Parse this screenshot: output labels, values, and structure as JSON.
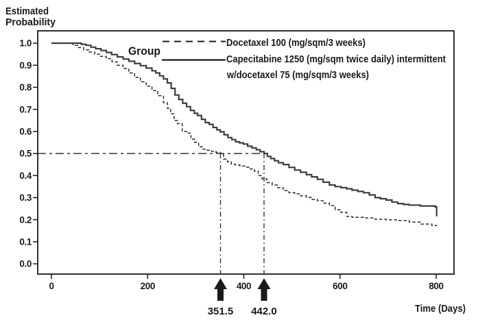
{
  "figure": {
    "ylabel_line1": "Estimated",
    "ylabel_line2": "Probability",
    "xlabel": "Time (Days)"
  },
  "legend": {
    "title": "Group",
    "items": [
      {
        "style": "dashed",
        "label": "Docetaxel 100 (mg/sqm/3 weeks)"
      },
      {
        "style": "solid",
        "label_line1": "Capecitabine 1250 (mg/sqm twice daily) intermittent",
        "label_line2": "w/docetaxel 75 (mg/sqm/3 weeks)"
      }
    ]
  },
  "colors": {
    "axis": "#1a1a1a",
    "text": "#1a1a1a",
    "solid_curve": "#3d3d3d",
    "dashed_curve": "#2b2b2b",
    "reference": "#333333",
    "background": "#ffffff"
  },
  "chart_data": {
    "type": "line",
    "subtype": "kaplan-meier-step",
    "title": "",
    "xlabel": "Time (Days)",
    "ylabel": "Estimated Probability",
    "xlim": [
      0,
      837
    ],
    "ylim": [
      0.0,
      1.0
    ],
    "x_ticks": [
      0,
      200,
      400,
      600,
      800
    ],
    "y_ticks": [
      0.0,
      0.1,
      0.2,
      0.3,
      0.4,
      0.5,
      0.6,
      0.7,
      0.8,
      0.9,
      1.0
    ],
    "grid": false,
    "legend_position": "top-right-inside",
    "series": [
      {
        "name": "Docetaxel 100 (mg/sqm/3 weeks)",
        "line_style": "dashed",
        "points": [
          [
            0,
            1.0
          ],
          [
            38,
            1.0
          ],
          [
            45,
            0.99
          ],
          [
            55,
            0.98
          ],
          [
            67,
            0.97
          ],
          [
            78,
            0.96
          ],
          [
            90,
            0.95
          ],
          [
            102,
            0.94
          ],
          [
            114,
            0.93
          ],
          [
            126,
            0.915
          ],
          [
            137,
            0.9
          ],
          [
            149,
            0.885
          ],
          [
            161,
            0.865
          ],
          [
            173,
            0.845
          ],
          [
            185,
            0.825
          ],
          [
            197,
            0.805
          ],
          [
            209,
            0.785
          ],
          [
            221,
            0.762
          ],
          [
            233,
            0.73
          ],
          [
            241,
            0.705
          ],
          [
            248,
            0.68
          ],
          [
            255,
            0.65
          ],
          [
            262,
            0.635
          ],
          [
            272,
            0.6
          ],
          [
            281,
            0.592
          ],
          [
            290,
            0.565
          ],
          [
            298,
            0.55
          ],
          [
            306,
            0.53
          ],
          [
            315,
            0.52
          ],
          [
            324,
            0.515
          ],
          [
            333,
            0.51
          ],
          [
            342,
            0.505
          ],
          [
            351.5,
            0.5
          ],
          [
            358,
            0.475
          ],
          [
            366,
            0.462
          ],
          [
            374,
            0.452
          ],
          [
            382,
            0.448
          ],
          [
            392,
            0.443
          ],
          [
            402,
            0.438
          ],
          [
            412,
            0.43
          ],
          [
            422,
            0.42
          ],
          [
            430,
            0.4
          ],
          [
            438,
            0.385
          ],
          [
            448,
            0.368
          ],
          [
            459,
            0.357
          ],
          [
            470,
            0.345
          ],
          [
            482,
            0.332
          ],
          [
            494,
            0.322
          ],
          [
            506,
            0.317
          ],
          [
            518,
            0.308
          ],
          [
            530,
            0.301
          ],
          [
            542,
            0.292
          ],
          [
            553,
            0.286
          ],
          [
            565,
            0.275
          ],
          [
            578,
            0.264
          ],
          [
            590,
            0.245
          ],
          [
            602,
            0.233
          ],
          [
            614,
            0.215
          ],
          [
            625,
            0.211
          ],
          [
            649,
            0.208
          ],
          [
            673,
            0.202
          ],
          [
            696,
            0.199
          ],
          [
            720,
            0.196
          ],
          [
            744,
            0.189
          ],
          [
            767,
            0.18
          ],
          [
            791,
            0.174
          ],
          [
            801,
            0.171
          ]
        ]
      },
      {
        "name": "Capecitabine 1250 (mg/sqm twice daily) intermittent w/docetaxel 75 (mg/sqm/3 weeks)",
        "line_style": "solid",
        "points": [
          [
            0,
            1.0
          ],
          [
            55,
            1.0
          ],
          [
            62,
            0.995
          ],
          [
            72,
            0.99
          ],
          [
            82,
            0.982
          ],
          [
            92,
            0.975
          ],
          [
            103,
            0.967
          ],
          [
            114,
            0.958
          ],
          [
            125,
            0.948
          ],
          [
            137,
            0.938
          ],
          [
            149,
            0.928
          ],
          [
            161,
            0.918
          ],
          [
            173,
            0.908
          ],
          [
            185,
            0.898
          ],
          [
            197,
            0.887
          ],
          [
            209,
            0.875
          ],
          [
            217,
            0.865
          ],
          [
            225,
            0.852
          ],
          [
            233,
            0.838
          ],
          [
            241,
            0.82
          ],
          [
            249,
            0.795
          ],
          [
            257,
            0.765
          ],
          [
            265,
            0.745
          ],
          [
            273,
            0.728
          ],
          [
            281,
            0.712
          ],
          [
            289,
            0.695
          ],
          [
            297,
            0.682
          ],
          [
            304,
            0.672
          ],
          [
            312,
            0.655
          ],
          [
            320,
            0.64
          ],
          [
            328,
            0.632
          ],
          [
            336,
            0.618
          ],
          [
            344,
            0.607
          ],
          [
            351,
            0.598
          ],
          [
            359,
            0.585
          ],
          [
            367,
            0.572
          ],
          [
            375,
            0.563
          ],
          [
            383,
            0.553
          ],
          [
            391,
            0.548
          ],
          [
            399,
            0.543
          ],
          [
            408,
            0.533
          ],
          [
            417,
            0.525
          ],
          [
            426,
            0.517
          ],
          [
            434,
            0.508
          ],
          [
            442,
            0.5
          ],
          [
            449,
            0.487
          ],
          [
            456,
            0.477
          ],
          [
            464,
            0.467
          ],
          [
            472,
            0.458
          ],
          [
            482,
            0.45
          ],
          [
            494,
            0.437
          ],
          [
            506,
            0.425
          ],
          [
            518,
            0.415
          ],
          [
            530,
            0.404
          ],
          [
            541,
            0.394
          ],
          [
            553,
            0.383
          ],
          [
            565,
            0.37
          ],
          [
            578,
            0.357
          ],
          [
            590,
            0.35
          ],
          [
            602,
            0.345
          ],
          [
            614,
            0.34
          ],
          [
            625,
            0.334
          ],
          [
            637,
            0.328
          ],
          [
            649,
            0.322
          ],
          [
            661,
            0.312
          ],
          [
            673,
            0.3
          ],
          [
            684,
            0.295
          ],
          [
            696,
            0.289
          ],
          [
            708,
            0.28
          ],
          [
            720,
            0.273
          ],
          [
            732,
            0.269
          ],
          [
            744,
            0.266
          ],
          [
            767,
            0.262
          ],
          [
            798,
            0.258
          ],
          [
            801,
            0.215
          ]
        ]
      }
    ],
    "reference": {
      "probability_level": 0.5,
      "medians": [
        {
          "series": "Docetaxel 100 (mg/sqm/3 weeks)",
          "value": 351.5,
          "label": "351.5"
        },
        {
          "series": "Capecitabine 1250 w/docetaxel 75",
          "value": 442.0,
          "label": "442.0"
        }
      ]
    }
  }
}
